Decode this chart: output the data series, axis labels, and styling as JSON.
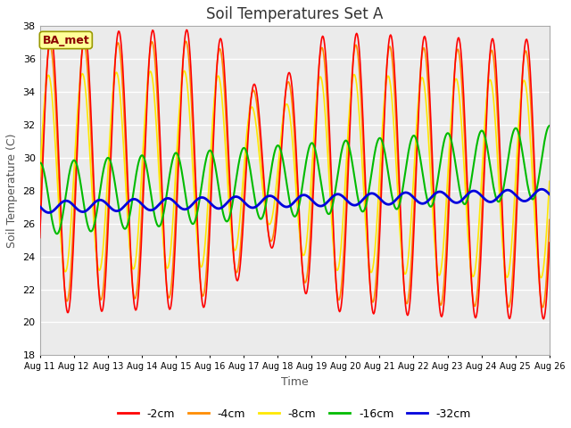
{
  "title": "Soil Temperatures Set A",
  "xlabel": "Time",
  "ylabel": "Soil Temperature (C)",
  "ylim": [
    18,
    38
  ],
  "yticks": [
    18,
    20,
    22,
    24,
    26,
    28,
    30,
    32,
    34,
    36,
    38
  ],
  "xtick_labels": [
    "Aug 11",
    "Aug 12",
    "Aug 13",
    "Aug 14",
    "Aug 15",
    "Aug 16",
    "Aug 17",
    "Aug 18",
    "Aug 19",
    "Aug 20",
    "Aug 21",
    "Aug 22",
    "Aug 23",
    "Aug 24",
    "Aug 25",
    "Aug 26"
  ],
  "annotation_text": "BA_met",
  "annotation_color": "#8B0000",
  "annotation_bg": "#FFFF99",
  "annotation_edge": "#999900",
  "fig_bg": "#FFFFFF",
  "plot_bg": "#EBEBEB",
  "grid_color": "#FFFFFF",
  "colors": {
    "-2cm": "#FF0000",
    "-4cm": "#FF8C00",
    "-8cm": "#FFE800",
    "-16cm": "#00BB00",
    "-32cm": "#0000DD"
  },
  "linewidths": {
    "-2cm": 1.2,
    "-4cm": 1.2,
    "-8cm": 1.2,
    "-16cm": 1.5,
    "-32cm": 2.0
  }
}
